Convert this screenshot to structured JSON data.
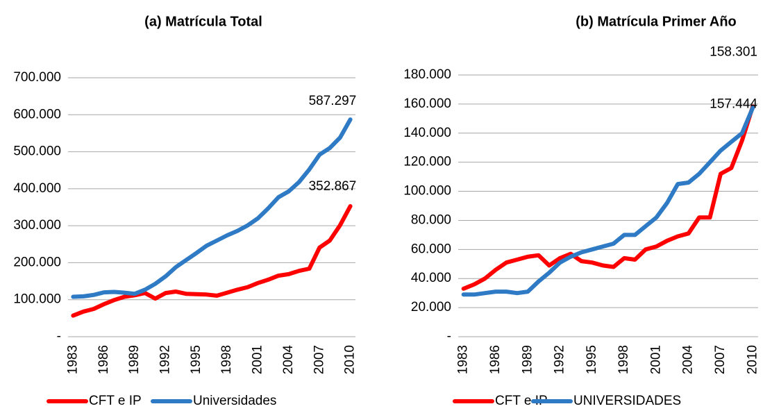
{
  "chart_data": [
    {
      "type": "line",
      "title": "(a) Matrícula Total",
      "categories": [
        "1983",
        null,
        null,
        "1986",
        null,
        null,
        "1989",
        null,
        null,
        "1992",
        null,
        null,
        "1995",
        null,
        null,
        "1998",
        null,
        null,
        "2001",
        null,
        null,
        "2004",
        null,
        null,
        "2007",
        null,
        null,
        "2010"
      ],
      "series": [
        {
          "name": "CFT e IP",
          "color": "#ff0000",
          "values": [
            57000,
            68000,
            75000,
            88000,
            99000,
            108000,
            112000,
            118000,
            103000,
            118000,
            122000,
            116000,
            115000,
            114000,
            111000,
            119000,
            127000,
            134000,
            145000,
            154000,
            165000,
            169000,
            178000,
            184000,
            241000,
            260000,
            301000,
            352867
          ],
          "value_labels": [
            null,
            null,
            null,
            null,
            null,
            null,
            null,
            null,
            null,
            null,
            null,
            null,
            null,
            null,
            null,
            null,
            null,
            null,
            null,
            null,
            null,
            null,
            null,
            null,
            null,
            null,
            null,
            "352.867"
          ]
        },
        {
          "name": "Universidades",
          "color": "#2e7ac4",
          "values": [
            108000,
            109000,
            113000,
            120000,
            121000,
            119000,
            116000,
            127000,
            143000,
            163000,
            188000,
            207000,
            226000,
            246000,
            260000,
            274000,
            286000,
            301000,
            320000,
            347000,
            377000,
            393000,
            418000,
            452000,
            492000,
            510000,
            538000,
            587297
          ],
          "value_labels": [
            null,
            null,
            null,
            null,
            null,
            null,
            null,
            null,
            null,
            null,
            null,
            null,
            null,
            null,
            null,
            null,
            null,
            null,
            null,
            null,
            null,
            null,
            null,
            null,
            null,
            null,
            null,
            "587.297"
          ]
        }
      ],
      "ylim": [
        0,
        700000
      ],
      "yticks": [
        {
          "value": 0,
          "label": "-"
        },
        {
          "value": 100000,
          "label": "100.000"
        },
        {
          "value": 200000,
          "label": "200.000"
        },
        {
          "value": 300000,
          "label": "300.000"
        },
        {
          "value": 400000,
          "label": "400.000"
        },
        {
          "value": 500000,
          "label": "500.000"
        },
        {
          "value": 600000,
          "label": "600.000"
        },
        {
          "value": 700000,
          "label": "700.000"
        }
      ],
      "grid": true,
      "legend": "bottom"
    },
    {
      "type": "line",
      "title": "(b)  Matrícula Primer Año",
      "categories": [
        "1983",
        null,
        null,
        "1986",
        null,
        null,
        "1989",
        null,
        null,
        "1992",
        null,
        null,
        "1995",
        null,
        null,
        "1998",
        null,
        null,
        "2001",
        null,
        null,
        "2004",
        null,
        null,
        "2007",
        null,
        null,
        "2010"
      ],
      "series": [
        {
          "name": "CFT e IP",
          "color": "#ff0000",
          "values": [
            33000,
            36000,
            40000,
            46000,
            51000,
            53000,
            55000,
            56000,
            49000,
            54000,
            57000,
            52000,
            51000,
            49000,
            48000,
            54000,
            53000,
            60000,
            62000,
            66000,
            69000,
            71000,
            82000,
            82000,
            112000,
            116000,
            135000,
            158301
          ],
          "value_labels": [
            null,
            null,
            null,
            null,
            null,
            null,
            null,
            null,
            null,
            null,
            null,
            null,
            null,
            null,
            null,
            null,
            null,
            null,
            null,
            null,
            null,
            null,
            null,
            null,
            null,
            null,
            null,
            "158.301"
          ]
        },
        {
          "name": "UNIVERSIDADES",
          "color": "#2e7ac4",
          "values": [
            29000,
            29000,
            30000,
            31000,
            31000,
            30000,
            31000,
            38000,
            44000,
            51000,
            55000,
            58000,
            60000,
            62000,
            64000,
            70000,
            70000,
            76000,
            82000,
            92000,
            105000,
            106000,
            112000,
            120000,
            128000,
            134000,
            140000,
            157444
          ],
          "value_labels": [
            null,
            null,
            null,
            null,
            null,
            null,
            null,
            null,
            null,
            null,
            null,
            null,
            null,
            null,
            null,
            null,
            null,
            null,
            null,
            null,
            null,
            null,
            null,
            null,
            null,
            null,
            null,
            "157.444"
          ]
        }
      ],
      "ylim": [
        0,
        180000
      ],
      "yticks": [
        {
          "value": 0,
          "label": "-"
        },
        {
          "value": 20000,
          "label": "20.000"
        },
        {
          "value": 40000,
          "label": "40.000"
        },
        {
          "value": 60000,
          "label": "60.000"
        },
        {
          "value": 80000,
          "label": "80.000"
        },
        {
          "value": 100000,
          "label": "100.000"
        },
        {
          "value": 120000,
          "label": "120.000"
        },
        {
          "value": 140000,
          "label": "140.000"
        },
        {
          "value": 160000,
          "label": "160.000"
        },
        {
          "value": 180000,
          "label": "180.000"
        }
      ],
      "grid": true,
      "legend": "bottom"
    }
  ]
}
